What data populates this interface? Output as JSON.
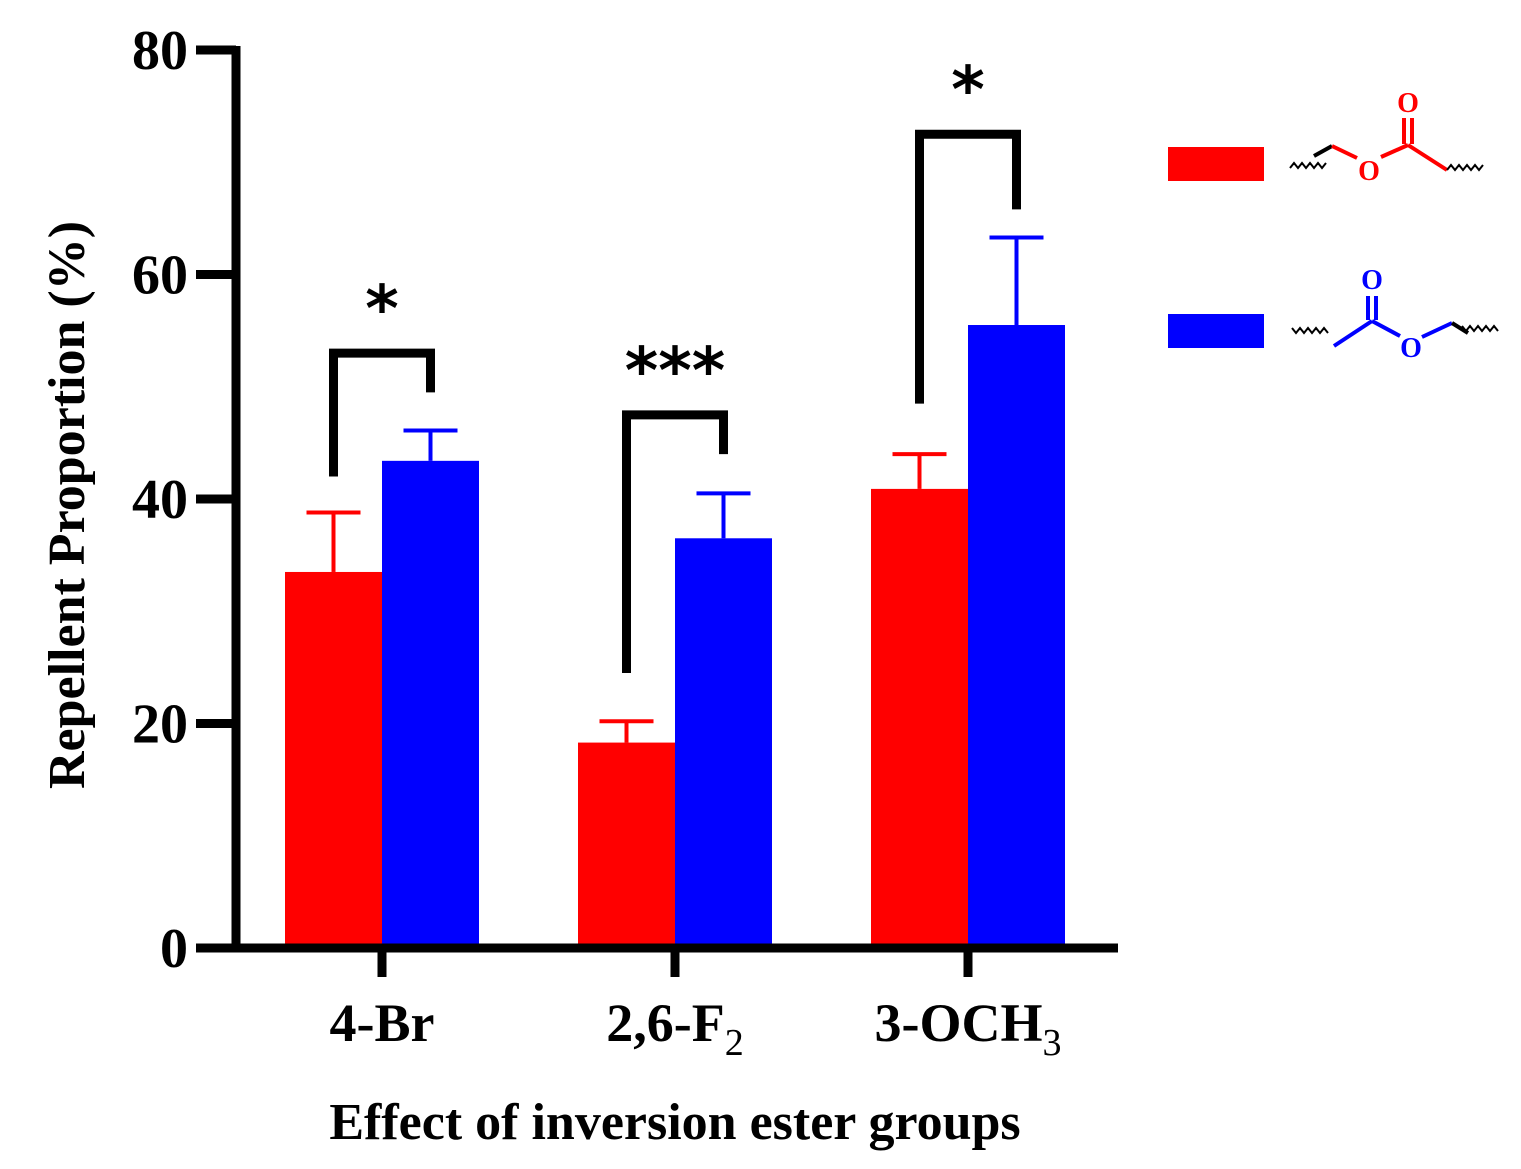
{
  "chart_data": {
    "type": "bar",
    "title": "",
    "xlabel": "Effect of inversion ester groups",
    "ylabel": "Repellent Proportion (%)",
    "ylim": [
      0,
      80
    ],
    "yticks": [
      "0",
      "20",
      "40",
      "60",
      "80"
    ],
    "categories": [
      {
        "main": "4-Br",
        "sub": ""
      },
      {
        "main": "2,6-F",
        "sub": "2"
      },
      {
        "main": "3-OCH",
        "sub": "3"
      }
    ],
    "series": [
      {
        "name": "ester (O-CH2 side, red structure)",
        "color": "#ff0000",
        "values": [
          33.5,
          18.3,
          40.9
        ],
        "errors": [
          5.3,
          1.9,
          3.1
        ]
      },
      {
        "name": "inverted ester (C(=O)-O side, blue structure)",
        "color": "#0000ff",
        "values": [
          43.4,
          36.5,
          55.5
        ],
        "errors": [
          2.7,
          4.0,
          7.8
        ]
      }
    ],
    "significance": [
      {
        "category": 0,
        "label": "*",
        "y": 53,
        "left_end": 42,
        "right_end": 49.5
      },
      {
        "category": 1,
        "label": "***",
        "y": 47.5,
        "left_end": 24.5,
        "right_end": 44
      },
      {
        "category": 2,
        "label": "*",
        "y": 72.5,
        "left_end": 48.5,
        "right_end": 65.8
      }
    ],
    "legend": {
      "position": "right",
      "entries": [
        {
          "color": "#ff0000",
          "atom_label": "O",
          "carbonyl_label": "O"
        },
        {
          "color": "#0000ff",
          "atom_label": "O",
          "carbonyl_label": "O"
        }
      ]
    }
  }
}
